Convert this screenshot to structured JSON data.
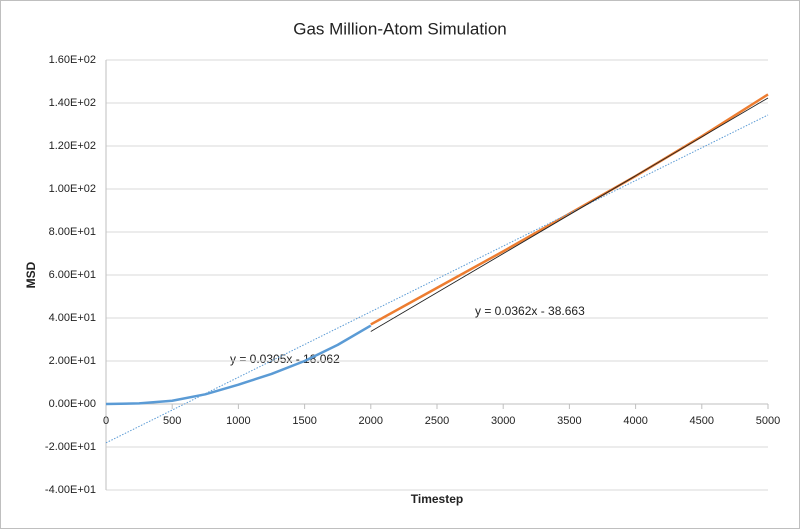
{
  "chart_data": {
    "type": "line",
    "title": "Gas Million-Atom Simulation",
    "x_label": "Timestep",
    "y_label": "MSD",
    "series": [
      {
        "color": "#5b9bd5",
        "x": [
          0,
          250,
          500,
          750,
          1000,
          1250,
          1500,
          1750,
          2000
        ],
        "values": [
          0,
          0.3,
          1.5,
          4.5,
          9,
          14,
          20,
          27.5,
          36.5
        ]
      },
      {
        "color": "#ed7d31",
        "x": [
          2000,
          2500,
          3000,
          3500,
          4000,
          4500,
          5000
        ],
        "values": [
          37,
          54,
          71,
          88.5,
          106,
          124.5,
          144
        ]
      }
    ],
    "trendlines": [
      {
        "color": "#5b9bd5",
        "dashed": true,
        "x": [
          0,
          5000
        ],
        "values": [
          -18.062,
          134.438
        ]
      },
      {
        "color": "#222222",
        "dashed": false,
        "x": [
          2000,
          5000
        ],
        "values": [
          33.737,
          142.337
        ]
      }
    ],
    "annotations": [
      "y = 0.0305x - 18.062",
      "y = 0.0362x - 38.663"
    ],
    "xlim": [
      0,
      5000
    ],
    "xticks": [
      0,
      500,
      1000,
      1500,
      2000,
      2500,
      3000,
      3500,
      4000,
      4500,
      5000
    ],
    "ylim": [
      -40,
      160
    ],
    "yticks": [
      {
        "value": -40,
        "label": "-4.00E+01"
      },
      {
        "value": -20,
        "label": "-2.00E+01"
      },
      {
        "value": 0,
        "label": "0.00E+00"
      },
      {
        "value": 20,
        "label": "2.00E+01"
      },
      {
        "value": 40,
        "label": "4.00E+01"
      },
      {
        "value": 60,
        "label": "6.00E+01"
      },
      {
        "value": 80,
        "label": "8.00E+01"
      },
      {
        "value": 100,
        "label": "1.00E+02"
      },
      {
        "value": 120,
        "label": "1.20E+02"
      },
      {
        "value": 140,
        "label": "1.40E+02"
      },
      {
        "value": 160,
        "label": "1.60E+02"
      }
    ],
    "grid": true
  }
}
